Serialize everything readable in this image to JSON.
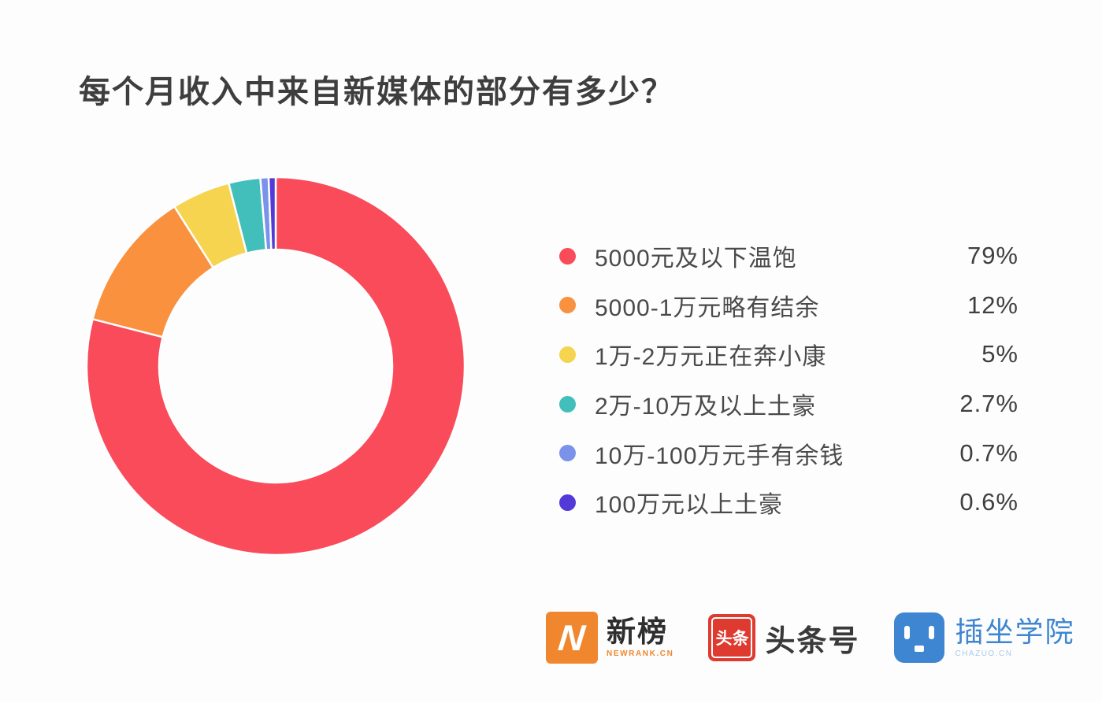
{
  "title": "每个月收入中来自新媒体的部分有多少？",
  "ui_colors": {
    "background": "#FDFDFD",
    "title_color": "#3E3E3E",
    "legend_text": "#4A4A4A",
    "newrank_orange": "#F0872E",
    "toutiao_red": "#DF3A30",
    "chazuo_blue": "#3E86D1"
  },
  "chart_data": {
    "type": "pie",
    "subtype": "donut",
    "title": "每个月收入中来自新媒体的部分有多少？",
    "start_angle_deg": 0,
    "direction": "clockwise",
    "legend_position": "right",
    "series": [
      {
        "label": "5000元及以下温饱",
        "value": 79,
        "display": "79%",
        "color": "#F94B5A"
      },
      {
        "label": "5000-1万元略有结余",
        "value": 12,
        "display": "12%",
        "color": "#F9913F"
      },
      {
        "label": "1万-2万元正在奔小康",
        "value": 5,
        "display": "5%",
        "color": "#F6D44F"
      },
      {
        "label": "2万-10万及以上土豪",
        "value": 2.7,
        "display": "2.7%",
        "color": "#42BFBA"
      },
      {
        "label": "10万-100万元手有余钱",
        "value": 0.7,
        "display": "0.7%",
        "color": "#7B92EA"
      },
      {
        "label": "100万元以上土豪",
        "value": 0.6,
        "display": "0.6%",
        "color": "#5239D8"
      }
    ]
  },
  "footer": {
    "newrank": {
      "name": "新榜",
      "sub": "NEWRANK.CN",
      "icon_letter": "N"
    },
    "toutiao": {
      "name": "头条号",
      "icon_text": "头条"
    },
    "chazuo": {
      "name": "插坐学院",
      "sub": "CHAZUO.CN"
    }
  }
}
